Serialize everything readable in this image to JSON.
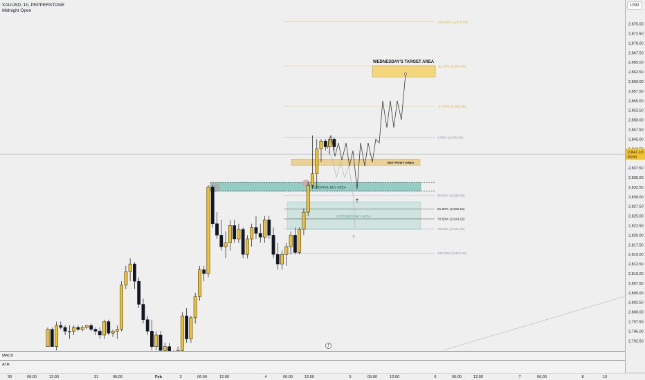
{
  "header": {
    "symbol_line": "XAUUSD, 1h, PEPPERSTONE",
    "indicator": "Midnight Open"
  },
  "price_scale": {
    "currency": "USD",
    "ticks": [
      "2,875.00",
      "2,872.50",
      "2,870.00",
      "2,867.50",
      "2,865.00",
      "2,862.50",
      "2,860.00",
      "2,857.50",
      "2,855.00",
      "2,852.50",
      "2,850.00",
      "2,847.50",
      "2,845.00",
      "2,842.50",
      "2,840.00",
      "2,837.50",
      "2,835.00",
      "2,832.50",
      "2,830.00",
      "2,827.50",
      "2,825.00",
      "2,822.50",
      "2,820.00",
      "2,817.50",
      "2,815.00",
      "2,812.50",
      "2,810.00",
      "2,807.50",
      "2,805.00",
      "2,802.50",
      "2,800.00",
      "2,797.50",
      "2,795.00",
      "2,792.50"
    ],
    "current_price": "2,841.10",
    "countdown": "53:09"
  },
  "time_axis": [
    "30",
    "06:00",
    "12:00",
    "31",
    "06:00",
    "Feb",
    "3",
    "06:00",
    "12:00",
    "4",
    "06:00",
    "12:00",
    "5",
    "06:00",
    "12:00",
    "6",
    "06:00",
    "12:00",
    "7",
    "06:00",
    "8",
    "10"
  ],
  "annotations": {
    "target_area": "WEDNESDAY'S  TARGET AREA",
    "key_pivot": "KEY PIVOT AREA",
    "potential_buy": "POTENTIAL BUY AREA",
    "extended_buy": "EXTENDED BUY AREA"
  },
  "fib_levels": [
    {
      "label": "-100.00% (2,875.53)",
      "color": "#d9b23a"
    },
    {
      "label": "-61.80% (2,864.03)",
      "color": "#d9b23a"
    },
    {
      "label": "-27.00% (2,853.56)",
      "color": "#d9b23a"
    },
    {
      "label": "0.00% (2,845.45)",
      "color": "#8f95a8"
    },
    {
      "label": "50.00% (2,830.39)",
      "color": "#8f95a8"
    },
    {
      "label": "61.80% (2,826.84)",
      "color": "#131722"
    },
    {
      "label": "70.50% (2,824.22)",
      "color": "#131722"
    },
    {
      "label": "79.00% (2,821.66)",
      "color": "#8f95a8"
    },
    {
      "label": "100.00% (2,815.34)",
      "color": "#8f95a8"
    }
  ],
  "panes": {
    "macd": "MACD",
    "atr": "ATR"
  },
  "colors": {
    "bull": "#f2c12e",
    "bear": "#131722",
    "zone_green": "#7cc4b8",
    "zone_gold": "#f4d77a",
    "background": "#efefef"
  },
  "icons": {
    "tv_logo": "circled-f-icon"
  }
}
